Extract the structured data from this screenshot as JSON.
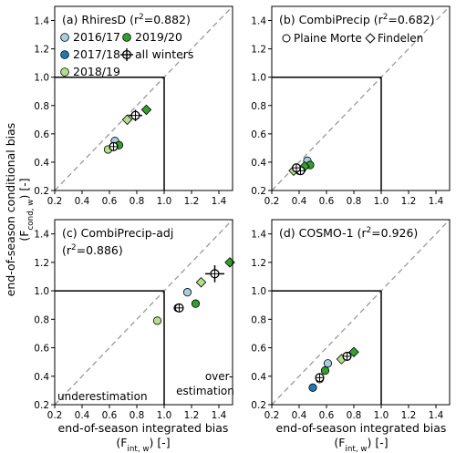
{
  "figure": {
    "y_axis_title_line1": "end-of-season conditional bias",
    "y_axis_title_line2_main": "(F",
    "y_axis_title_line2_sub": "cond, w",
    "y_axis_title_line2_end": ") [-]",
    "x_axis_title_line1": "end-of-season integrated bias",
    "x_axis_title_line2_main": "(F",
    "x_axis_title_line2_sub": "int, w",
    "x_axis_title_line2_end": ")   [-]"
  },
  "legend": {
    "winters": [
      {
        "label": "2016/17",
        "color": "#a6cee3"
      },
      {
        "label": "2019/20",
        "color": "#33a02c"
      },
      {
        "label": "2017/18",
        "color": "#1f78b4"
      },
      {
        "label": "all winters",
        "color": "#ffffff"
      },
      {
        "label": "2018/19",
        "color": "#b2df8a"
      }
    ],
    "sites": [
      {
        "label": "Plaine Morte",
        "marker": "circle"
      },
      {
        "label": "Findelen",
        "marker": "diamond"
      }
    ]
  },
  "chart_data": [
    {
      "type": "scatter",
      "panel": "a",
      "title": "(a) RhiresD (r",
      "title_sup": "2",
      "title_end": "=0.882)",
      "xlim": [
        0.2,
        1.5
      ],
      "ylim": [
        0.2,
        1.5
      ],
      "xticks": [
        "0.2",
        "0.4",
        "0.6",
        "0.8",
        "1.0",
        "1.2",
        "1.4"
      ],
      "yticks": [
        "0.2",
        "0.4",
        "0.6",
        "0.8",
        "1.0",
        "1.2",
        "1.4"
      ],
      "points": [
        {
          "x": 0.64,
          "y": 0.55,
          "color": "#a6cee3",
          "marker": "circle"
        },
        {
          "x": 0.67,
          "y": 0.52,
          "color": "#33a02c",
          "marker": "circle"
        },
        {
          "x": 0.63,
          "y": 0.51,
          "color": "#1f78b4",
          "marker": "circle"
        },
        {
          "x": 0.59,
          "y": 0.49,
          "color": "#b2df8a",
          "marker": "circle"
        },
        {
          "x": 0.73,
          "y": 0.7,
          "color": "#b2df8a",
          "marker": "diamond"
        },
        {
          "x": 0.87,
          "y": 0.77,
          "color": "#33a02c",
          "marker": "diamond"
        }
      ],
      "means": [
        {
          "x": 0.63,
          "y": 0.51,
          "xerr": 0.04,
          "yerr": 0.03
        },
        {
          "x": 0.79,
          "y": 0.73,
          "xerr": 0.05,
          "yerr": 0.04
        }
      ]
    },
    {
      "type": "scatter",
      "panel": "b",
      "title": "(b) CombiPrecip (r",
      "title_sup": "2",
      "title_end": "=0.682)",
      "xlim": [
        0.2,
        1.5
      ],
      "ylim": [
        0.2,
        1.5
      ],
      "xticks": [
        "0.2",
        "0.4",
        "0.6",
        "0.8",
        "1.0",
        "1.2",
        "1.4"
      ],
      "yticks": [
        "0.2",
        "0.4",
        "0.6",
        "0.8",
        "1.0",
        "1.2",
        "1.4"
      ],
      "points": [
        {
          "x": 0.46,
          "y": 0.41,
          "color": "#a6cee3",
          "marker": "circle"
        },
        {
          "x": 0.48,
          "y": 0.38,
          "color": "#33a02c",
          "marker": "circle"
        },
        {
          "x": 0.42,
          "y": 0.35,
          "color": "#1f78b4",
          "marker": "circle"
        },
        {
          "x": 0.4,
          "y": 0.34,
          "color": "#b2df8a",
          "marker": "circle"
        },
        {
          "x": 0.36,
          "y": 0.34,
          "color": "#b2df8a",
          "marker": "diamond"
        },
        {
          "x": 0.44,
          "y": 0.37,
          "color": "#33a02c",
          "marker": "diamond"
        }
      ],
      "means": [
        {
          "x": 0.41,
          "y": 0.34,
          "xerr": 0.02,
          "yerr": 0.02
        },
        {
          "x": 0.38,
          "y": 0.36,
          "xerr": 0.02,
          "yerr": 0.02
        }
      ]
    },
    {
      "type": "scatter",
      "panel": "c",
      "title": "(c) CombiPrecip-adj",
      "title2": "(r",
      "title2_sup": "2",
      "title2_end": "=0.886)",
      "annotation_left": "underestimation",
      "annotation_right_line1": "over-",
      "annotation_right_line2": "estimation",
      "xlim": [
        0.2,
        1.5
      ],
      "ylim": [
        0.2,
        1.5
      ],
      "xticks": [
        "0.2",
        "0.4",
        "0.6",
        "0.8",
        "1.0",
        "1.2",
        "1.4"
      ],
      "yticks": [
        "0.2",
        "0.4",
        "0.6",
        "0.8",
        "1.0",
        "1.2",
        "1.4"
      ],
      "points": [
        {
          "x": 1.17,
          "y": 0.99,
          "color": "#a6cee3",
          "marker": "circle"
        },
        {
          "x": 1.23,
          "y": 0.91,
          "color": "#33a02c",
          "marker": "circle"
        },
        {
          "x": 1.1,
          "y": 0.88,
          "color": "#1f78b4",
          "marker": "circle"
        },
        {
          "x": 0.95,
          "y": 0.79,
          "color": "#b2df8a",
          "marker": "circle"
        },
        {
          "x": 1.27,
          "y": 1.06,
          "color": "#b2df8a",
          "marker": "diamond"
        },
        {
          "x": 1.48,
          "y": 1.2,
          "color": "#33a02c",
          "marker": "diamond"
        }
      ],
      "means": [
        {
          "x": 1.11,
          "y": 0.88,
          "xerr": 0.03,
          "yerr": 0.02
        },
        {
          "x": 1.37,
          "y": 1.12,
          "xerr": 0.07,
          "yerr": 0.06
        }
      ]
    },
    {
      "type": "scatter",
      "panel": "d",
      "title": "(d) COSMO-1 (r",
      "title_sup": "2",
      "title_end": "=0.926)",
      "xlim": [
        0.2,
        1.5
      ],
      "ylim": [
        0.2,
        1.5
      ],
      "xticks": [
        "0.2",
        "0.4",
        "0.6",
        "0.8",
        "1.0",
        "1.2",
        "1.4"
      ],
      "yticks": [
        "0.2",
        "0.4",
        "0.6",
        "0.8",
        "1.0",
        "1.2",
        "1.4"
      ],
      "points": [
        {
          "x": 0.61,
          "y": 0.49,
          "color": "#a6cee3",
          "marker": "circle"
        },
        {
          "x": 0.59,
          "y": 0.44,
          "color": "#33a02c",
          "marker": "circle"
        },
        {
          "x": 0.5,
          "y": 0.32,
          "color": "#1f78b4",
          "marker": "circle"
        },
        {
          "x": 0.55,
          "y": 0.38,
          "color": "#b2df8a",
          "marker": "circle"
        },
        {
          "x": 0.71,
          "y": 0.52,
          "color": "#b2df8a",
          "marker": "diamond"
        },
        {
          "x": 0.8,
          "y": 0.57,
          "color": "#33a02c",
          "marker": "diamond"
        }
      ],
      "means": [
        {
          "x": 0.55,
          "y": 0.39,
          "xerr": 0.03,
          "yerr": 0.02
        },
        {
          "x": 0.75,
          "y": 0.54,
          "xerr": 0.03,
          "yerr": 0.03
        }
      ]
    }
  ]
}
